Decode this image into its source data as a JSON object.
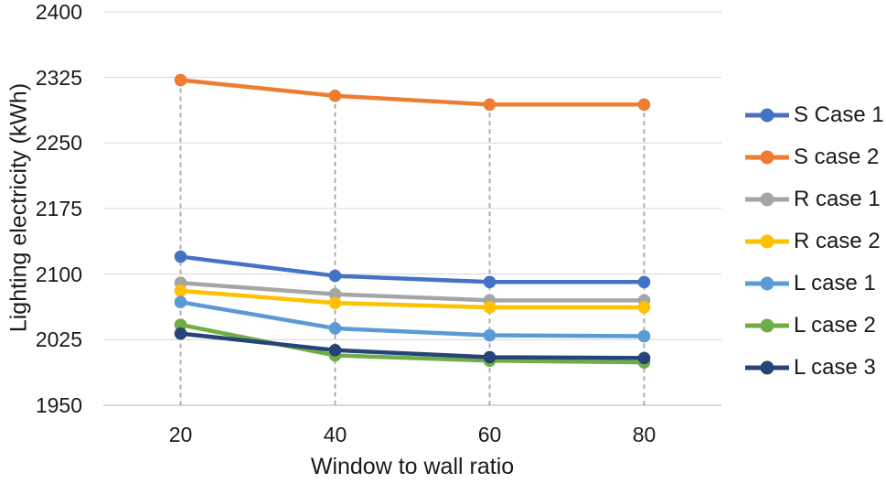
{
  "chart_data": {
    "type": "line",
    "x": [
      20,
      40,
      60,
      80
    ],
    "xlabel": "Window to wall ratio",
    "ylabel": "Lighting electricity (kWh)",
    "ylim": [
      1950,
      2400
    ],
    "yticks": [
      2400,
      2325,
      2250,
      2175,
      2100,
      2025,
      1950
    ],
    "grid": true,
    "drop_lines": true,
    "legend_position": "right",
    "colors": {
      "gridline": "#D9D9D9",
      "axis_line": "#BFBFBF",
      "drop_line": "#A6A6A6",
      "text": "#1a1a1a"
    },
    "series": [
      {
        "name": "S Case 1",
        "color": "#4472C4",
        "values": [
          2120,
          2098,
          2091,
          2091
        ]
      },
      {
        "name": "S case 2",
        "color": "#ED7D31",
        "values": [
          2322,
          2304,
          2294,
          2294
        ]
      },
      {
        "name": "R case 1",
        "color": "#A5A5A5",
        "values": [
          2090,
          2077,
          2070,
          2070
        ]
      },
      {
        "name": "R case 2",
        "color": "#FFC000",
        "values": [
          2081,
          2067,
          2062,
          2062
        ]
      },
      {
        "name": "L case 1",
        "color": "#5B9BD5",
        "values": [
          2068,
          2038,
          2030,
          2029
        ]
      },
      {
        "name": "L case 2",
        "color": "#70AD47",
        "values": [
          2042,
          2007,
          2001,
          1999
        ]
      },
      {
        "name": "L case 3",
        "color": "#264478",
        "values": [
          2032,
          2013,
          2005,
          2004
        ]
      }
    ]
  }
}
